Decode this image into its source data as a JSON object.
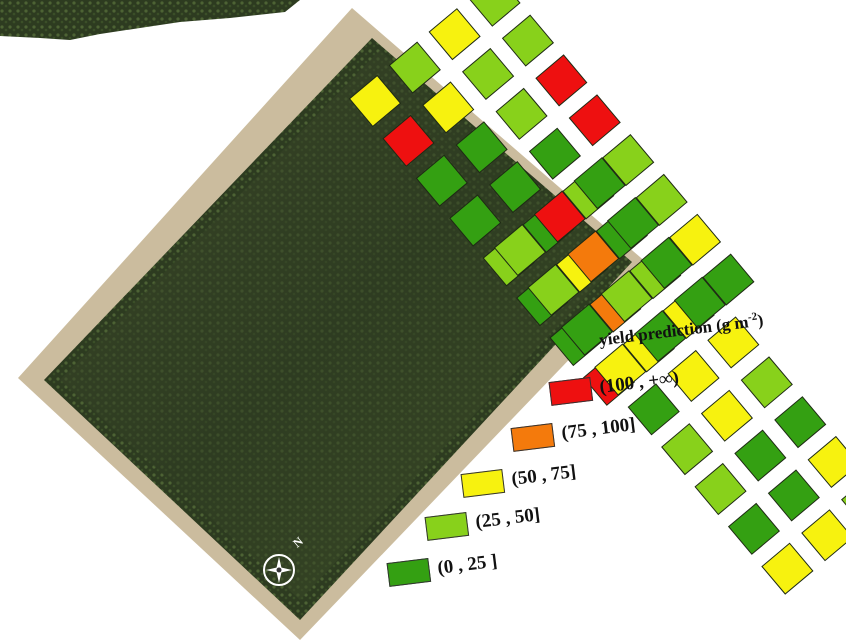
{
  "legend": {
    "title": "yield prediction (g m",
    "title_sup": "-2",
    "title_tail": ")",
    "classes": [
      {
        "label": "(100 , +∞)",
        "color": "#ee1010",
        "code": 4
      },
      {
        "label": "(75 , 100]",
        "color": "#f47a0c",
        "code": 3
      },
      {
        "label": "(50 , 75]",
        "color": "#f7f20f",
        "code": 2
      },
      {
        "label": "(25 , 50]",
        "color": "#88d11b",
        "code": 1
      },
      {
        "label": "(0 , 25 ]",
        "color": "#34a012",
        "code": 0
      }
    ]
  },
  "compass": {
    "label": "N",
    "icon": "compass-rose-icon"
  },
  "plots": {
    "upper_block": [
      [
        2,
        1,
        2,
        1
      ],
      [
        4,
        2,
        1,
        1
      ],
      [
        0,
        0,
        1,
        4
      ],
      [
        0,
        0,
        0,
        4
      ],
      [
        1,
        0,
        1,
        1
      ],
      [
        0,
        2,
        0,
        1
      ],
      [
        0,
        3,
        1,
        2
      ],
      [
        4,
        2,
        2,
        0
      ]
    ],
    "lower_block": [
      [
        1,
        4,
        0
      ],
      [
        1,
        3,
        0
      ],
      [
        0,
        1,
        0
      ],
      [
        2,
        0,
        0
      ],
      [
        0,
        2,
        2
      ],
      [
        1,
        2,
        1
      ],
      [
        1,
        0,
        0
      ],
      [
        0,
        0,
        2
      ],
      [
        2,
        2,
        1
      ]
    ]
  }
}
